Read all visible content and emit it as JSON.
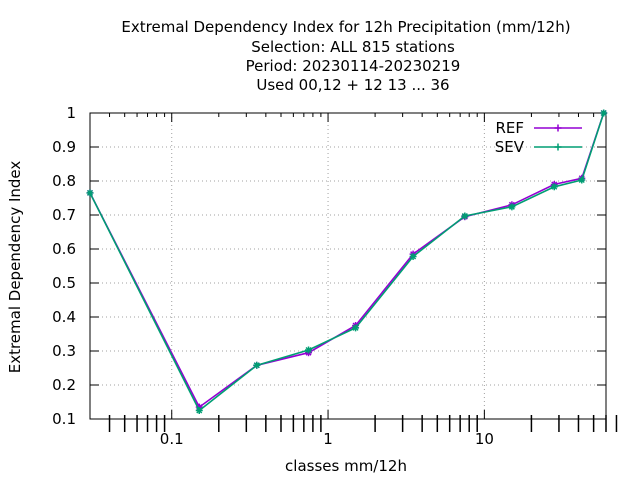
{
  "chart_data": {
    "type": "line",
    "title_lines": [
      "Extremal Dependency Index  for 12h Precipitation (mm/12h)",
      "Selection: ALL    815 stations",
      "Period: 20230114-20230219",
      "Used  00,12  + 12 13 ... 36"
    ],
    "xlabel": "classes mm/12h",
    "ylabel": "Extremal Dependency Index",
    "x_scale": "log",
    "xlim": [
      0.03,
      60
    ],
    "ylim": [
      0.1,
      1.0
    ],
    "x_ticks": [
      {
        "value": 0.1,
        "label": "0.1"
      },
      {
        "value": 1,
        "label": "1"
      },
      {
        "value": 10,
        "label": "10"
      }
    ],
    "y_ticks": [
      {
        "value": 0.1,
        "label": "0.1"
      },
      {
        "value": 0.2,
        "label": "0.2"
      },
      {
        "value": 0.3,
        "label": "0.3"
      },
      {
        "value": 0.4,
        "label": "0.4"
      },
      {
        "value": 0.5,
        "label": "0.5"
      },
      {
        "value": 0.6,
        "label": "0.6"
      },
      {
        "value": 0.7,
        "label": "0.7"
      },
      {
        "value": 0.8,
        "label": "0.8"
      },
      {
        "value": 0.9,
        "label": "0.9"
      },
      {
        "value": 1.0,
        "label": "1"
      }
    ],
    "grid": true,
    "legend_position": "top-right",
    "series": [
      {
        "name": "REF",
        "color": "#9400d3",
        "x": [
          0.03,
          0.15,
          0.35,
          0.75,
          1.5,
          3.5,
          7.5,
          15,
          28,
          42,
          58
        ],
        "y": [
          0.765,
          0.135,
          0.258,
          0.295,
          0.375,
          0.585,
          0.695,
          0.73,
          0.79,
          0.808,
          1.0
        ]
      },
      {
        "name": "SEV",
        "color": "#009e73",
        "x": [
          0.03,
          0.15,
          0.35,
          0.75,
          1.5,
          3.5,
          7.5,
          15,
          28,
          42,
          58
        ],
        "y": [
          0.765,
          0.125,
          0.258,
          0.303,
          0.368,
          0.578,
          0.697,
          0.724,
          0.783,
          0.803,
          1.0
        ]
      }
    ]
  }
}
